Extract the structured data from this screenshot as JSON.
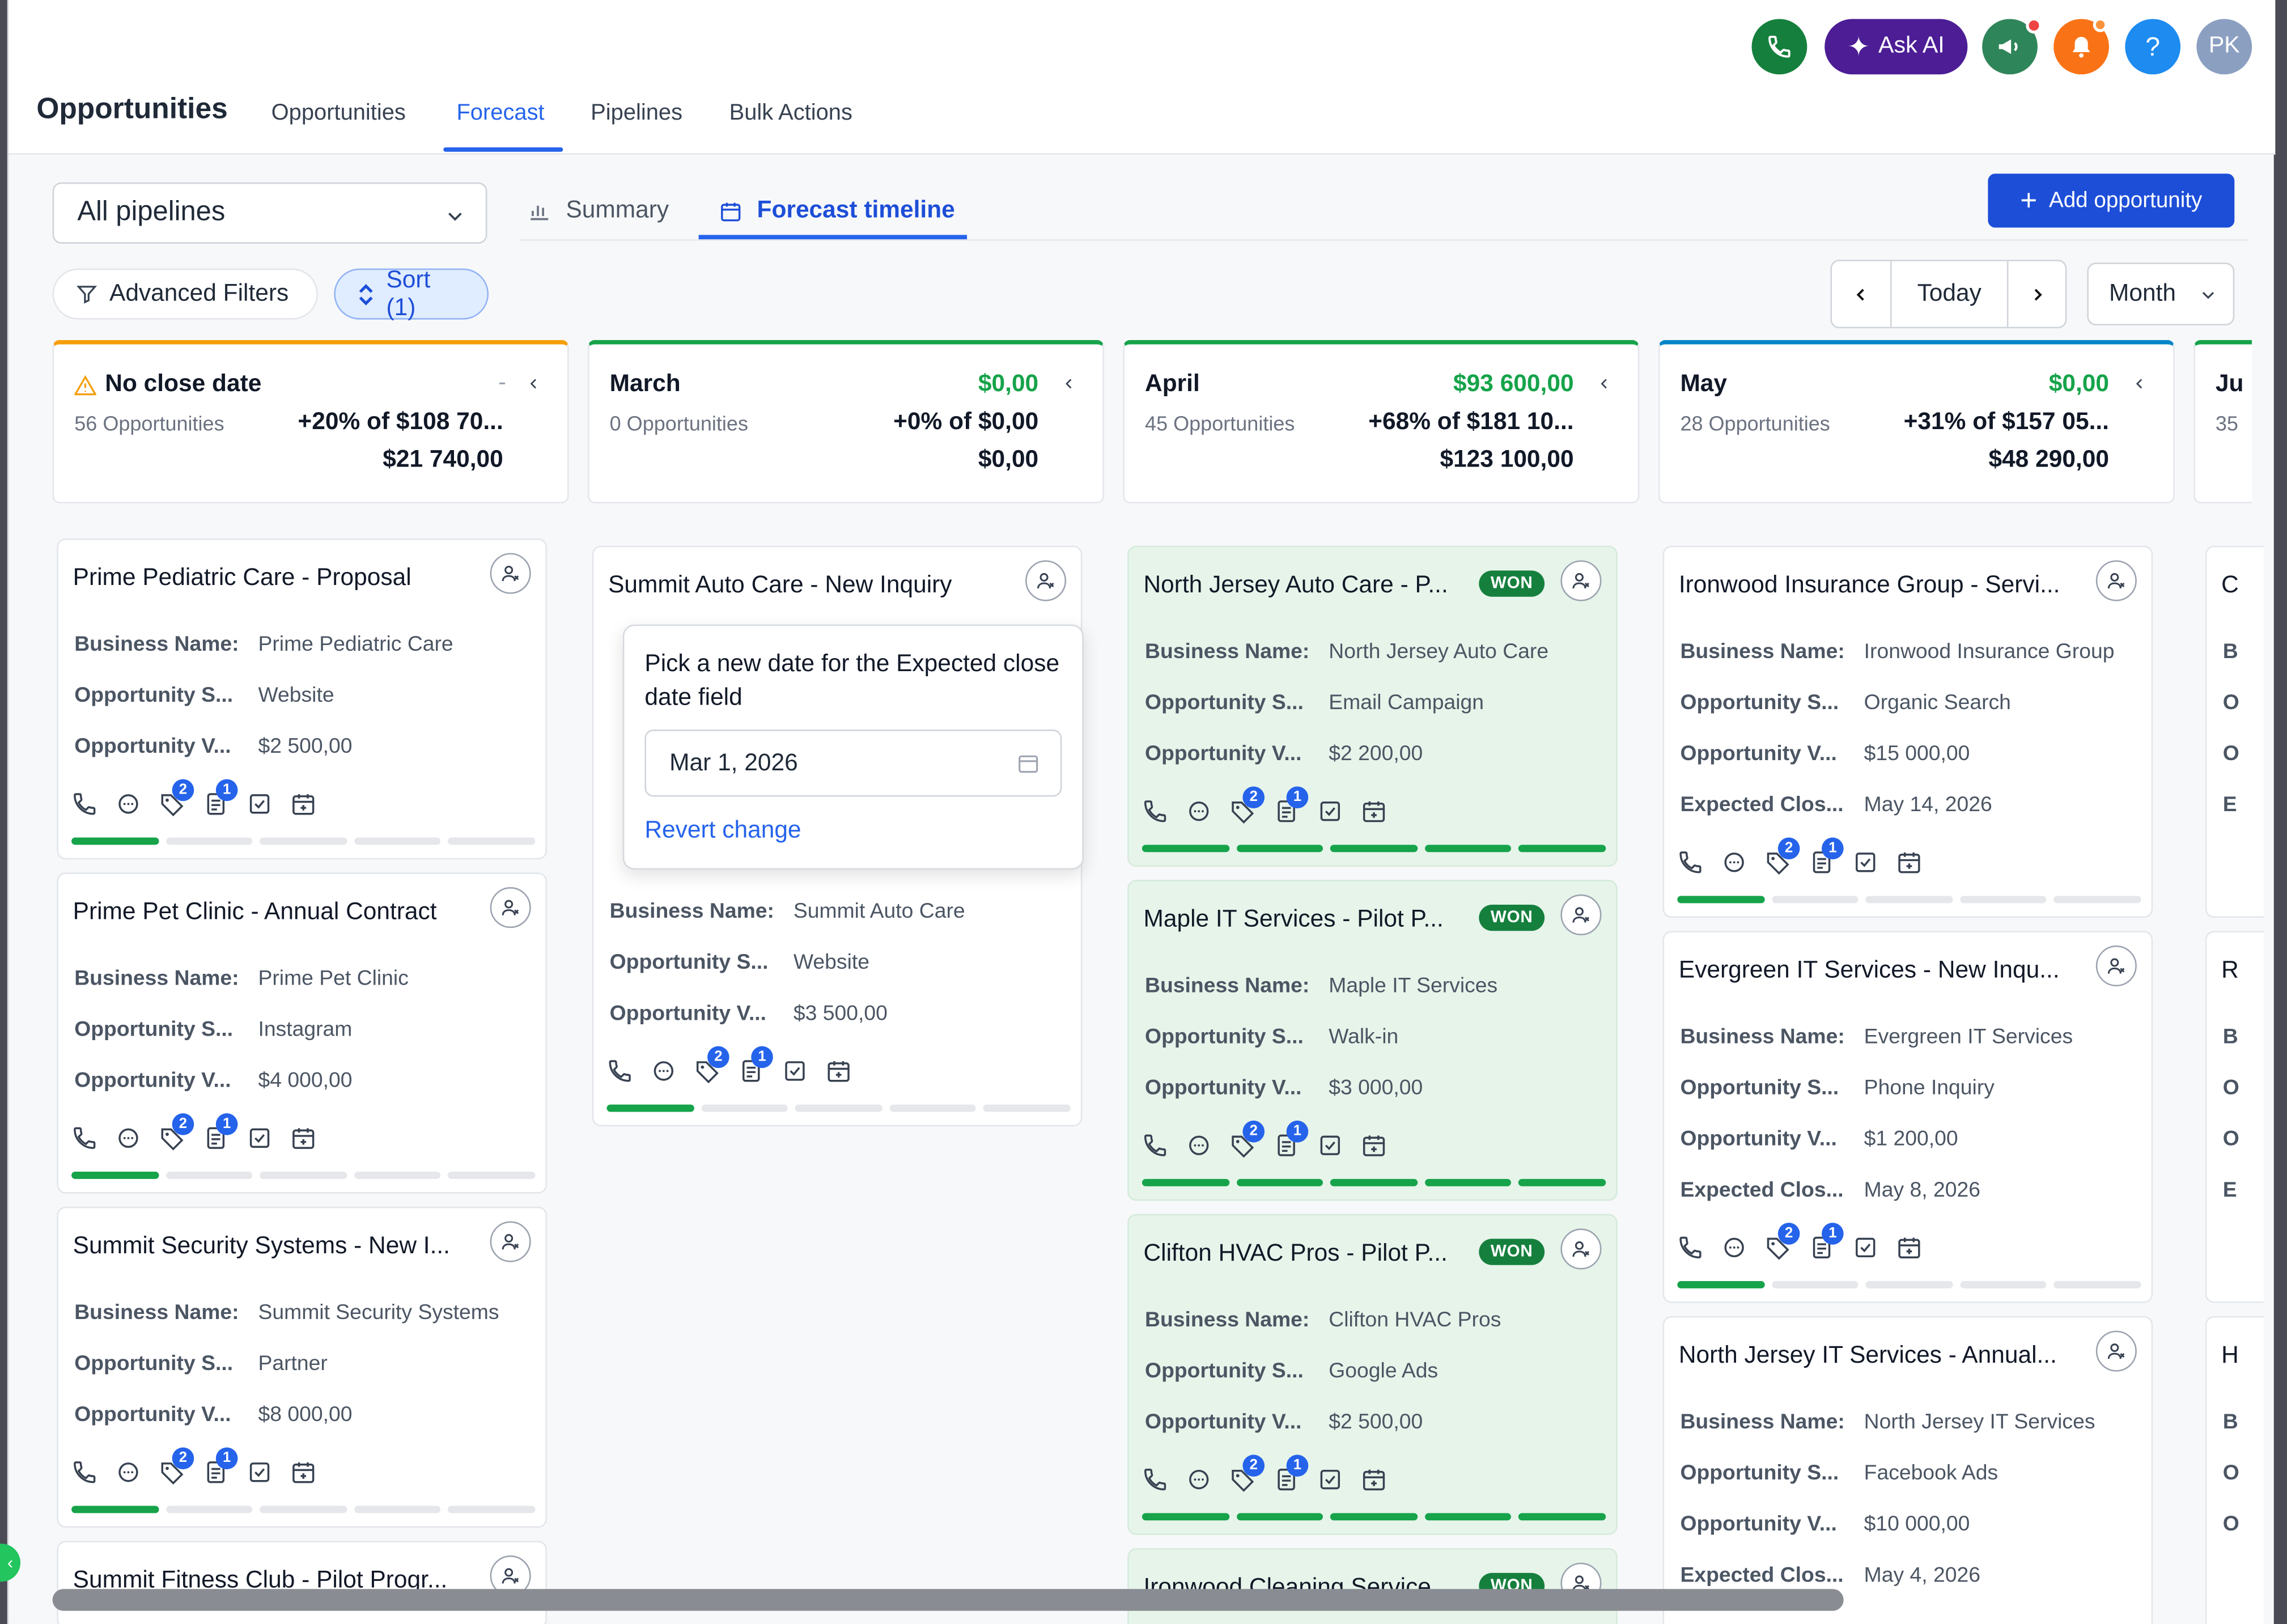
{
  "header": {
    "page_title": "Opportunities",
    "nav_tabs": [
      "Opportunities",
      "Forecast",
      "Pipelines",
      "Bulk Actions"
    ],
    "active_tab": "Forecast",
    "ask_ai_label": "Ask AI",
    "avatar_initials": "PK",
    "help_label": "?"
  },
  "toolbar": {
    "pipeline_select": "All pipelines",
    "view_tabs": [
      "Summary",
      "Forecast timeline"
    ],
    "active_view": "Forecast timeline",
    "add_button": "Add opportunity",
    "advanced_filters": "Advanced Filters",
    "sort_label": "Sort (1)",
    "today_label": "Today",
    "period_select": "Month"
  },
  "columns": [
    {
      "name": "No close date",
      "count": "56 Opportunities",
      "amount": "",
      "pct": "+20% of $108 70...",
      "total": "$21 740,00",
      "accent": "#f59e0b"
    },
    {
      "name": "March",
      "count": "0 Opportunities",
      "amount": "$0,00",
      "pct": "+0% of $0,00",
      "total": "$0,00",
      "accent": "#16a34a"
    },
    {
      "name": "April",
      "count": "45 Opportunities",
      "amount": "$93 600,00",
      "pct": "+68% of $181 10...",
      "total": "$123 100,00",
      "accent": "#16a34a"
    },
    {
      "name": "May",
      "count": "28 Opportunities",
      "amount": "$0,00",
      "pct": "+31% of $157 05...",
      "total": "$48 290,00",
      "accent": "#0284c7"
    },
    {
      "name": "Ju",
      "count": "35",
      "accent": "#16a34a"
    }
  ],
  "labels": {
    "business_name": "Business Name:",
    "opportunity_source": "Opportunity S...",
    "opportunity_value": "Opportunity V...",
    "expected_close": "Expected Clos...",
    "won": "WON"
  },
  "cards": {
    "c0": [
      {
        "title": "Prime Pediatric Care - Proposal",
        "business": "Prime Pediatric Care",
        "source": "Website",
        "value": "$2 500,00"
      },
      {
        "title": "Prime Pet Clinic - Annual Contract",
        "business": "Prime Pet Clinic",
        "source": "Instagram",
        "value": "$4 000,00"
      },
      {
        "title": "Summit Security Systems - New I...",
        "business": "Summit Security Systems",
        "source": "Partner",
        "value": "$8 000,00"
      },
      {
        "title": "Summit Fitness Club - Pilot Progr..."
      }
    ],
    "c1": [
      {
        "title": "Summit Auto Care - New Inquiry",
        "business": "Summit Auto Care",
        "source": "Website",
        "value": "$3 500,00"
      }
    ],
    "c2": [
      {
        "title": "North Jersey Auto Care - P...",
        "business": "North Jersey Auto Care",
        "source": "Email Campaign",
        "value": "$2 200,00"
      },
      {
        "title": "Maple IT Services - Pilot P...",
        "business": "Maple IT Services",
        "source": "Walk-in",
        "value": "$3 000,00"
      },
      {
        "title": "Clifton HVAC Pros - Pilot P...",
        "business": "Clifton HVAC Pros",
        "source": "Google Ads",
        "value": "$2 500,00"
      },
      {
        "title": "Ironwood Cleaning Service"
      }
    ],
    "c3": [
      {
        "title": "Ironwood Insurance Group - Servi...",
        "business": "Ironwood Insurance Group",
        "source": "Organic Search",
        "value": "$15 000,00",
        "close": "May 14, 2026"
      },
      {
        "title": "Evergreen IT Services - New Inqu...",
        "business": "Evergreen IT Services",
        "source": "Phone Inquiry",
        "value": "$1 200,00",
        "close": "May 8, 2026"
      },
      {
        "title": "North Jersey IT Services - Annual...",
        "business": "North Jersey IT Services",
        "source": "Facebook Ads",
        "value": "$10 000,00",
        "close": "May 4, 2026"
      }
    ],
    "c4_letters": [
      "C",
      "R",
      "H"
    ],
    "c4_row_letters": [
      "B",
      "O",
      "O",
      "E"
    ]
  },
  "badges": {
    "tags": "2",
    "notes": "1"
  },
  "popup": {
    "message": "Pick a new date for the Expected close date field",
    "date_value": "Mar 1, 2026",
    "revert_label": "Revert change"
  },
  "colors": {
    "accent": "#2563eb",
    "won_green": "#15803d",
    "warning": "#f59e0b"
  }
}
